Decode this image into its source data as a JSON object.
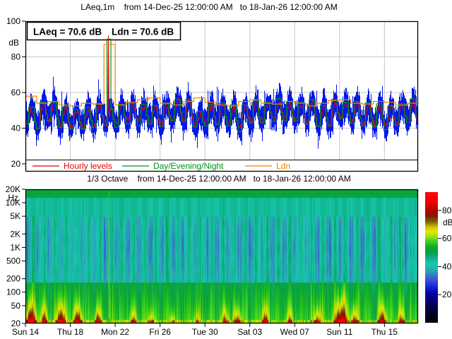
{
  "chart_data": [
    {
      "type": "line",
      "title": "LAeq,1m    from 14-Dec-25 12:00:00 AM   to 18-Jan-26 12:00:00 AM",
      "title_parts": {
        "measure": "LAeq,1m",
        "from": "from 14-Dec-25 12:00:00 AM",
        "to": "to 18-Jan-26 12:00:00 AM"
      },
      "ylabel": "dB",
      "yticks": [
        100,
        80,
        60,
        40,
        20
      ],
      "ylim": [
        20,
        100
      ],
      "xlim_days": [
        0,
        35
      ],
      "annotation": {
        "laeq": "LAeq = 70.6 dB",
        "ldn": "Ldn = 70.6 dB"
      },
      "legend": [
        {
          "label": "Hourly levels",
          "color": "#e80000"
        },
        {
          "label": "Day/Evening/Night",
          "color": "#009018"
        },
        {
          "label": "Ldn",
          "color": "#f08000"
        }
      ],
      "series": [
        {
          "name": "1-minute levels",
          "style": "vertical-bars",
          "color": "#0018e8",
          "summary": "dense noisy band ~33-72 dB with diurnal cycle: ~52 dB daytime, ~42 dB night"
        },
        {
          "name": "Hourly levels",
          "style": "line",
          "color": "#e80000",
          "summary": "follows band centre 40-58 dB; isolated spike to ~92 dB shortly before Mon 22"
        },
        {
          "name": "Day/Evening/Night",
          "style": "steps",
          "color": "#009018",
          "summary": "day/evening/night step levels 41-57 dB; event step ~90 dB before Mon 22"
        },
        {
          "name": "Ldn",
          "style": "steps",
          "color": "#f08000",
          "daily_values": [
            58,
            54,
            55,
            53,
            52.5,
            54,
            53.5,
            87,
            53,
            54.5,
            56,
            57,
            54,
            53,
            55,
            57,
            54.5,
            53,
            52.5,
            55,
            56,
            54,
            53.5,
            55,
            54,
            52.5,
            54,
            55.5,
            56,
            54,
            53.5,
            55,
            54.5,
            53,
            54
          ]
        }
      ],
      "event": {
        "day": 7.37,
        "spike_level": 92,
        "den_start": 7.27,
        "den_end": 7.62,
        "den_level": 90,
        "ldn_day": 7,
        "ldn_level": 87
      },
      "synthesis": {
        "base_night": 43,
        "day_boost": 9,
        "walk_amp": 3
      }
    },
    {
      "type": "heatmap",
      "title": "1/3 Octave    from 14-Dec-25 12:00:00 AM   to 18-Jan-26 12:00:00 AM",
      "title_parts": {
        "measure": "1/3 Octave",
        "from": "from 14-Dec-25 12:00:00 AM",
        "to": "to 18-Jan-26 12:00:00 AM"
      },
      "ylabel": "Hz",
      "yticks": [
        "20K",
        "10K",
        "5K",
        "2K",
        "1K",
        "500",
        "200",
        "100",
        "50",
        "20"
      ],
      "ytick_hz": [
        20000,
        10000,
        5000,
        2000,
        1000,
        500,
        200,
        100,
        50,
        20
      ],
      "freq_range_hz": [
        20,
        20000
      ],
      "colorbar": {
        "unit": "dB",
        "ticks": [
          80,
          60,
          40,
          20
        ],
        "range": [
          0,
          93
        ]
      },
      "colormap_stops": [
        [
          0,
          "#000008"
        ],
        [
          6,
          "#000020"
        ],
        [
          14,
          "#000060"
        ],
        [
          21,
          "#0000a8"
        ],
        [
          27,
          "#2030e0"
        ],
        [
          32,
          "#4060d0"
        ],
        [
          37,
          "#28a8b0"
        ],
        [
          42,
          "#18c8b0"
        ],
        [
          46,
          "#10b088"
        ],
        [
          50,
          "#08a048"
        ],
        [
          54,
          "#0fa830"
        ],
        [
          58,
          "#38d818"
        ],
        [
          62,
          "#b0e010"
        ],
        [
          65,
          "#e8e800"
        ],
        [
          68,
          "#c8c800"
        ],
        [
          72,
          "#806000"
        ],
        [
          76,
          "#7a2000"
        ],
        [
          80,
          "#b80000"
        ],
        [
          86,
          "#f00000"
        ],
        [
          93,
          "#ff0800"
        ]
      ],
      "bands_summary": {
        "20K_band": "solid dark green ~52 dB",
        "5K_10K_band": "bright turquoise ~43 dB",
        "200_4K_band": "teal/green striations ~35-52 dB, muted blue patches at night",
        "below_200": "green-yellow ~50-62 dB with low-frequency flame events"
      },
      "flames": [
        {
          "day": 0.4,
          "amp": 37,
          "width": 0.45,
          "h": 0.1
        },
        {
          "day": 1.6,
          "amp": 26,
          "width": 0.3,
          "h": 0.08
        },
        {
          "day": 3.1,
          "amp": 33,
          "width": 0.4,
          "h": 0.1
        },
        {
          "day": 4.6,
          "amp": 32,
          "width": 0.35,
          "h": 0.09
        },
        {
          "day": 6.4,
          "amp": 28,
          "width": 0.28,
          "h": 0.08
        },
        {
          "day": 9.6,
          "amp": 20,
          "width": 0.3,
          "h": 0.07
        },
        {
          "day": 11.2,
          "amp": 17,
          "width": 0.28,
          "h": 0.07
        },
        {
          "day": 13.1,
          "amp": 15,
          "width": 0.25,
          "h": 0.06
        },
        {
          "day": 15.3,
          "amp": 14,
          "width": 0.3,
          "h": 0.06
        },
        {
          "day": 17.8,
          "amp": 22,
          "width": 0.3,
          "h": 0.08
        },
        {
          "day": 18.9,
          "amp": 25,
          "width": 0.32,
          "h": 0.08
        },
        {
          "day": 21.4,
          "amp": 27,
          "width": 0.28,
          "h": 0.08
        },
        {
          "day": 23.6,
          "amp": 18,
          "width": 0.28,
          "h": 0.07
        },
        {
          "day": 26.1,
          "amp": 22,
          "width": 0.35,
          "h": 0.08
        },
        {
          "day": 28.2,
          "amp": 38,
          "width": 0.55,
          "h": 0.12
        },
        {
          "day": 29.4,
          "amp": 24,
          "width": 0.28,
          "h": 0.08
        },
        {
          "day": 31.9,
          "amp": 29,
          "width": 0.33,
          "h": 0.09
        },
        {
          "day": 33.6,
          "amp": 20,
          "width": 0.3,
          "h": 0.07
        }
      ],
      "event_line_day": 7.38
    }
  ],
  "x_axis": {
    "labels": [
      "Sun 14",
      "Thu 18",
      "Mon 22",
      "Fri 26",
      "Tue 30",
      "Sat 03",
      "Wed 07",
      "Sun 11",
      "Thu 15"
    ],
    "tick_days": [
      0,
      4,
      8,
      12,
      16,
      20,
      24,
      28,
      32
    ]
  }
}
